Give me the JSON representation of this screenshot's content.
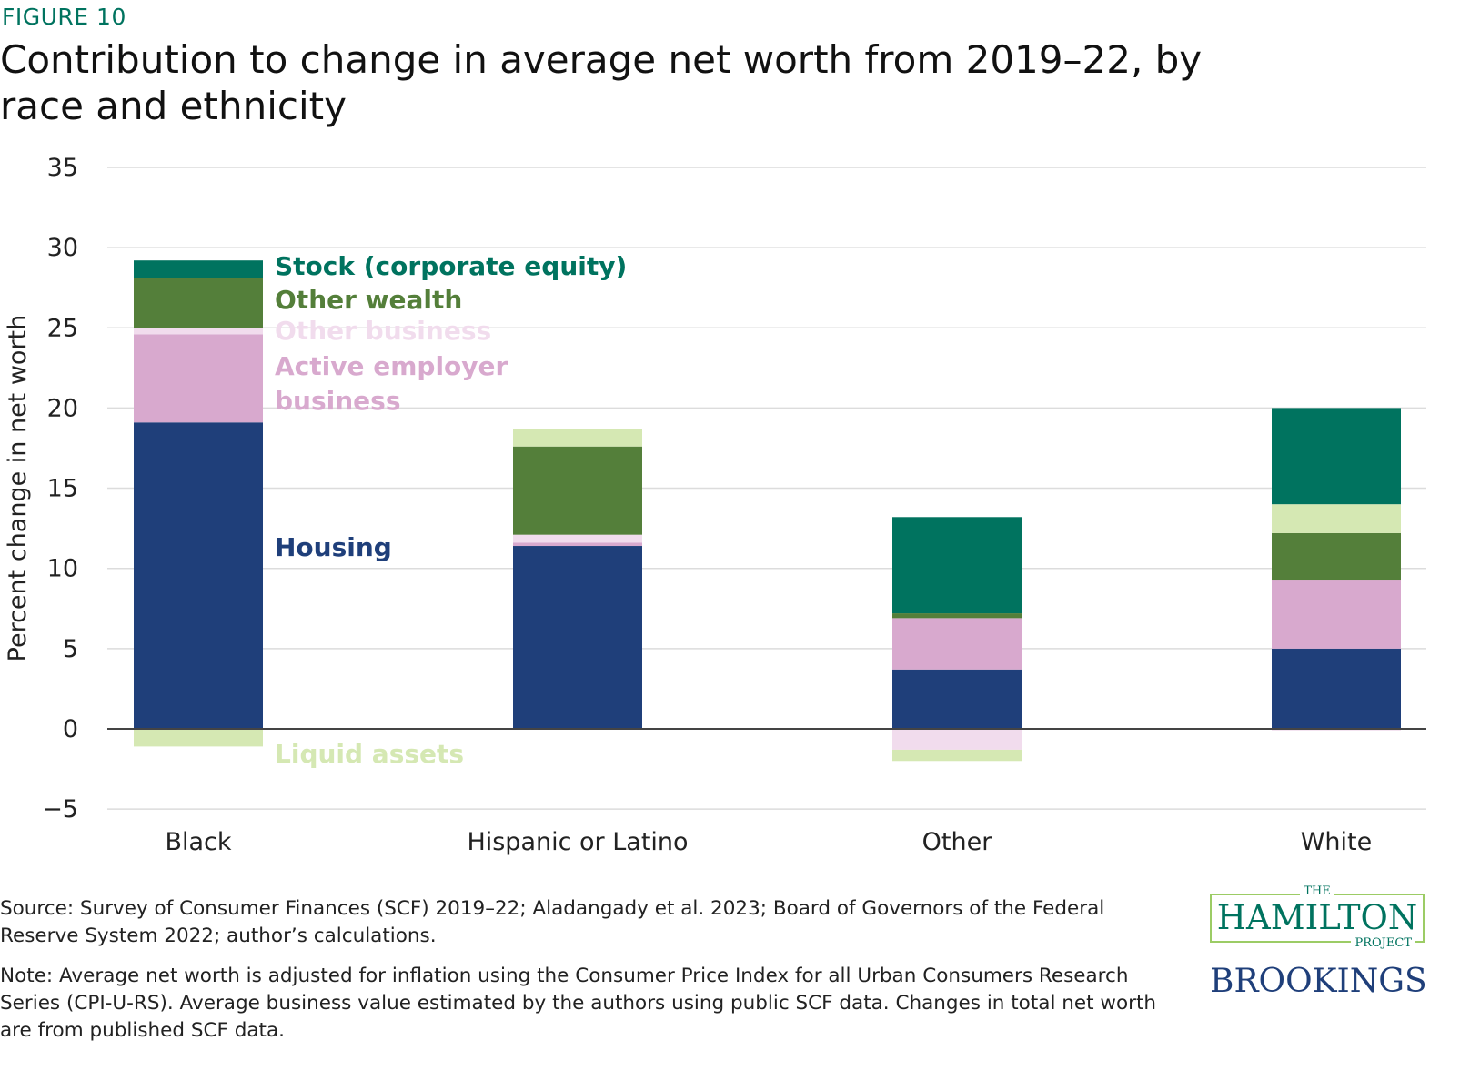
{
  "figure_label": "FIGURE 10",
  "chart_data": {
    "type": "stacked-bar",
    "title": "Contribution to change in average net worth from 2019–22, by race and ethnicity",
    "ylabel": "Percent change in net worth",
    "xlabel": "",
    "ylim": [
      -5,
      35
    ],
    "yticks": [
      35,
      30,
      25,
      20,
      15,
      10,
      5,
      0,
      -5
    ],
    "grid": true,
    "legend_placement": "inline, right of first bar",
    "categories": [
      "Black",
      "Hispanic or Latino",
      "Other",
      "White"
    ],
    "series": [
      {
        "name": "Housing",
        "color": "#1f3f7a",
        "values": [
          19.1,
          11.4,
          3.7,
          5.0
        ]
      },
      {
        "name": "Active employer business",
        "color": "#d8a9ce",
        "values": [
          5.5,
          0.2,
          3.2,
          4.3
        ]
      },
      {
        "name": "Other business",
        "color": "#f1dced",
        "values": [
          0.4,
          0.5,
          -1.3,
          -0.1
        ]
      },
      {
        "name": "Other wealth",
        "color": "#547f3a",
        "values": [
          3.1,
          5.5,
          0.3,
          2.9
        ]
      },
      {
        "name": "Liquid assets",
        "color": "#d5e8b3",
        "values": [
          -1.1,
          1.1,
          -0.7,
          1.8
        ]
      },
      {
        "name": "Stock (corporate equity)",
        "color": "#00735f",
        "values": [
          1.1,
          0.0,
          6.0,
          6.0
        ]
      }
    ]
  },
  "source": "Source: Survey of Consumer Finances (SCF) 2019–22; Aladangady et al. 2023; Board of Governors of the Federal Reserve System 2022; author’s calculations.",
  "note": "Note: Average net worth is adjusted for inflation using the Consumer Price Index for all Urban Consumers Research Series (CPI-U-RS). Average business value estimated by the authors using public SCF data. Changes in total net worth are from published SCF data.",
  "logo": {
    "the": "THE",
    "name": "HAMILTON",
    "project": "PROJECT",
    "brookings": "BROOKINGS"
  }
}
